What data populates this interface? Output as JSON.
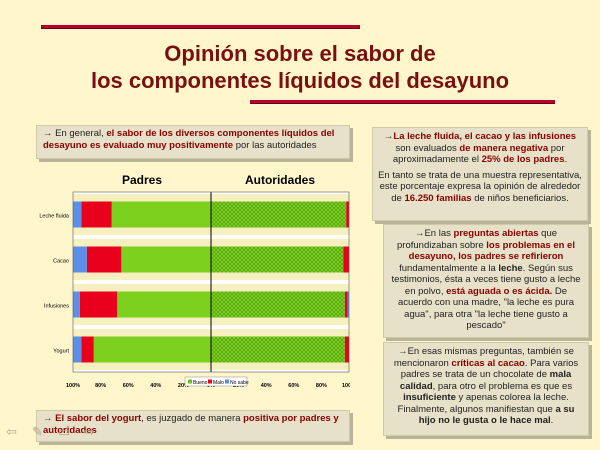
{
  "title": {
    "line1": "Opinión sobre el sabor de",
    "line2": "los componentes líquidos del desayuno"
  },
  "box_top": {
    "arrow": "→",
    "t1": "En general, ",
    "t2": "el sabor de los diversos componentes líquidos del desayuno es evaluado muy positivamente",
    "t3": " por las autoridades"
  },
  "box_bottom": {
    "arrow": "→",
    "t1": "El sabor del yogurt",
    "t2": ", es juzgado de manera ",
    "t3": "positiva por padres y autoridades"
  },
  "right1": {
    "arrow": "→",
    "p1a": "La leche fluida",
    "p1b": ", el cacao y las infusiones",
    "p1c": " son evaluados ",
    "p1d": "de manera negativa",
    "p1e": " por aproximadamente el ",
    "p1f": "25% de los padres",
    "p1g": ".",
    "p2a": "En tanto se trata de una muestra representativa, este porcentaje expresa la opinión de alrededor de ",
    "p2b": "16.250 familias",
    "p2c": " de niños beneficiarios."
  },
  "right2": {
    "arrow": "→",
    "a": "En las ",
    "b": "preguntas abiertas",
    "c": " que profundizaban sobre ",
    "d": "los problemas en el desayuno, los padres se refirieron",
    "e": " fundamentalmente a la ",
    "f": "leche",
    "g": ". Según sus testimonios, ésta a veces tiene gusto a leche en polvo, ",
    "h": "está aguada o es ácida.",
    "i": " De acuerdo con una madre, ",
    "j": "\"la leche es pura agua\"",
    "k": ", para otra ",
    "l": "\"la leche tiene gusto a pescado\""
  },
  "right3": {
    "arrow": "→",
    "a": "En esas mismas preguntas, también se mencionaron ",
    "b": "críticas al cacao",
    "c": ". Para varios padres se trata de un chocolate de ",
    "d": "mala calidad",
    "e": ", para otro el problema es que es ",
    "f": "insuficiente",
    "g": " y apenas colorea la leche. Finalmente, algunos manifiestan que ",
    "h": "a su hijo no le gusta o le hace mal",
    "i": "."
  },
  "colors": {
    "bueno": "#7cd01e",
    "malo": "#e8001c",
    "no_sabe": "#5b8fe8",
    "band": "#f6efc0"
  },
  "chart_data": {
    "type": "bar",
    "orientation": "horizontal-butterfly",
    "panels": [
      "Padres",
      "Autoridades"
    ],
    "categories": [
      "Leche fluida",
      "Cacao",
      "Infusiones",
      "Yogurt"
    ],
    "series": [
      {
        "name": "Bueno",
        "padres": [
          72,
          65,
          68,
          85
        ],
        "autoridades": [
          98,
          96,
          97,
          97
        ]
      },
      {
        "name": "Malo",
        "padres": [
          22,
          25,
          27,
          9
        ],
        "autoridades": [
          2,
          4,
          2,
          3
        ]
      },
      {
        "name": "No sabe",
        "padres": [
          6,
          10,
          5,
          6
        ],
        "autoridades": [
          0,
          0,
          1,
          0
        ]
      }
    ],
    "xticks": [
      "100%",
      "80%",
      "60%",
      "40%",
      "20%",
      "0%",
      "20%",
      "40%",
      "60%",
      "80%",
      "100%"
    ],
    "legend": [
      "Bueno",
      "Malo",
      "No sabe"
    ],
    "legend_position": "bottom"
  }
}
